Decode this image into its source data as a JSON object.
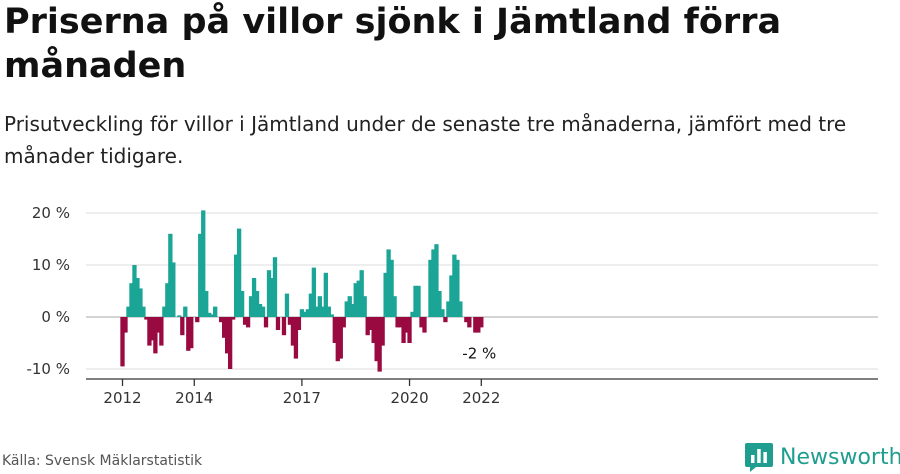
{
  "header": {
    "title": "Priserna på villor sjönk i Jämtland förra månaden",
    "subtitle": "Prisutveckling för villor i Jämtland under de senaste tre månaderna, jämfört med tre månader tidigare."
  },
  "footer": {
    "source": "Källa: Svensk Mäklarstatistik",
    "brand": "Newsworthy"
  },
  "colors": {
    "positive": "#1aa596",
    "negative": "#990a41",
    "grid": "#dddddd",
    "axis": "#333333",
    "brand": "#1f9e8f"
  },
  "chart_data": {
    "type": "bar",
    "title": "Priserna på villor sjönk i Jämtland förra månaden",
    "xlabel": "",
    "ylabel": "",
    "ylim": [
      -12,
      22
    ],
    "y_ticks": [
      20,
      10,
      0,
      -10
    ],
    "y_tick_labels": [
      "20 %",
      "10 %",
      "0 %",
      "-10 %"
    ],
    "x_ticks": [
      {
        "label": "2012",
        "index": 0
      },
      {
        "label": "2014",
        "index": 24
      },
      {
        "label": "2017",
        "index": 60
      },
      {
        "label": "2020",
        "index": 96
      },
      {
        "label": "2022",
        "index": 120
      }
    ],
    "annotation": {
      "label": "-2 %",
      "index": 120,
      "value": -2
    },
    "start": "2012-01",
    "values": [
      -9.5,
      -3,
      2,
      6.5,
      10,
      7.5,
      5.5,
      2,
      -0.5,
      -5.5,
      -4.5,
      -7,
      -3,
      -5.5,
      2,
      6.5,
      16,
      10.5,
      0,
      0.3,
      -3.5,
      2,
      -6.5,
      -6,
      0,
      -1,
      16,
      20.5,
      5,
      0.8,
      0.5,
      2,
      0,
      -1,
      -4,
      -7,
      -10,
      -0.5,
      12,
      17,
      5,
      -1.5,
      -2,
      4,
      7.5,
      5,
      2.5,
      2,
      -2,
      9,
      7.5,
      11.5,
      -2.5,
      0,
      -3.5,
      4.5,
      -1.5,
      -5.5,
      -8,
      -2.5,
      1.5,
      1,
      1.5,
      4.5,
      9.5,
      2,
      4,
      2,
      8.5,
      2,
      0.5,
      -5,
      -8.5,
      -8,
      -2,
      3,
      4,
      2.5,
      6.5,
      7,
      9,
      4,
      -3.5,
      -2.5,
      -5,
      -8.5,
      -10.5,
      -5.5,
      8.5,
      13,
      11,
      4,
      -2,
      -2,
      -5,
      -3,
      -5,
      1,
      6,
      6,
      -2,
      -3,
      0,
      11,
      13,
      14,
      5,
      1.5,
      -1,
      3,
      8,
      12,
      11,
      3,
      0,
      -1,
      -2,
      0,
      -3,
      -3,
      -2
    ]
  }
}
